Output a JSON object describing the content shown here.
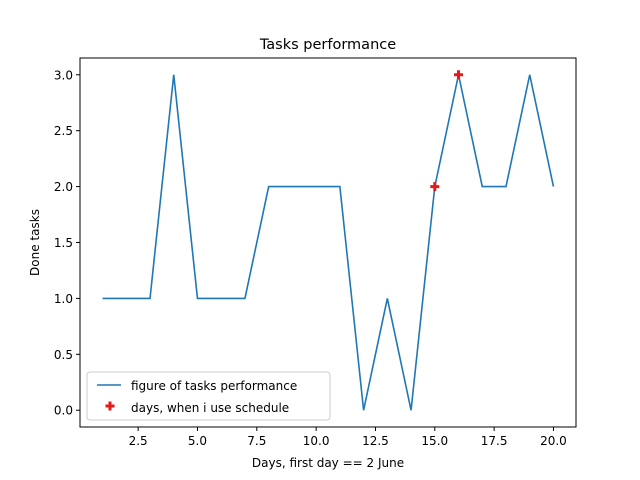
{
  "chart_data": {
    "type": "line",
    "title": "Tasks performance",
    "xlabel": "Days, first day == 2 June",
    "ylabel": "Done tasks",
    "xlim": [
      0.05,
      20.95
    ],
    "ylim": [
      -0.15,
      3.15
    ],
    "x_ticks": [
      2.5,
      5.0,
      7.5,
      10.0,
      12.5,
      15.0,
      17.5,
      20.0
    ],
    "x_tick_labels": [
      "2.5",
      "5.0",
      "7.5",
      "10.0",
      "12.5",
      "15.0",
      "17.5",
      "20.0"
    ],
    "y_ticks": [
      0.0,
      0.5,
      1.0,
      1.5,
      2.0,
      2.5,
      3.0
    ],
    "y_tick_labels": [
      "0.0",
      "0.5",
      "1.0",
      "1.5",
      "2.0",
      "2.5",
      "3.0"
    ],
    "grid": false,
    "legend_position": "lower-left",
    "series": [
      {
        "name": "figure of tasks performance",
        "kind": "line",
        "color": "#1f77b4",
        "x": [
          1,
          2,
          3,
          4,
          5,
          6,
          7,
          8,
          9,
          10,
          11,
          12,
          13,
          14,
          15,
          16,
          17,
          18,
          19,
          20
        ],
        "y": [
          1,
          1,
          1,
          3,
          1,
          1,
          1,
          2,
          2,
          2,
          2,
          0,
          1,
          0,
          2,
          3,
          2,
          2,
          3,
          2
        ]
      },
      {
        "name": "days, when i use schedule",
        "kind": "scatter",
        "marker": "plus",
        "color": "#e31a1c",
        "x": [
          15,
          16
        ],
        "y": [
          2,
          3
        ]
      }
    ]
  }
}
